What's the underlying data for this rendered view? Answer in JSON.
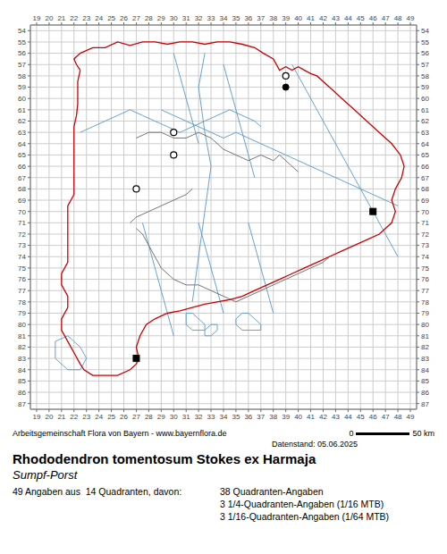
{
  "chart_data": {
    "type": "scatter",
    "title": "Rhododendron tomentosum Stokes ex Harmaja",
    "subtitle": "Sumpf-Porst",
    "annotations": [
      "Arbeitsgemeinschaft Flora von Bayern - www.bayernflora.de",
      "0",
      "50 km",
      "Datenstand: 05.06.2025",
      "49 Angaben aus  14 Quadranten, davon:",
      "38 Quadranten-Angaben",
      "3 1/4-Quadranten-Angaben (1/16 MTB)",
      "3 1/16-Quadranten-Angaben (1/64 MTB)"
    ],
    "xlim": [
      18.5,
      49.5
    ],
    "ylim": [
      87.5,
      53.5
    ],
    "xticks": [
      19,
      20,
      21,
      22,
      23,
      24,
      25,
      26,
      27,
      28,
      29,
      30,
      31,
      32,
      33,
      34,
      35,
      36,
      37,
      38,
      39,
      40,
      41,
      42,
      43,
      44,
      45,
      46,
      47,
      48,
      49
    ],
    "yticks": [
      54,
      55,
      56,
      57,
      58,
      59,
      60,
      61,
      62,
      63,
      64,
      65,
      66,
      67,
      68,
      69,
      70,
      71,
      72,
      73,
      74,
      75,
      76,
      77,
      78,
      79,
      80,
      81,
      82,
      83,
      84,
      85,
      86,
      87
    ],
    "grid": true,
    "series": [
      {
        "type": "line",
        "color": "#5599cc",
        "x": [
          29.0,
          30.0,
          31.0,
          32.0,
          33.0,
          34.0,
          35.0,
          36.0,
          37.0,
          38.0,
          39.0,
          40.0,
          41.0,
          42.0,
          43.0,
          44.0,
          45.0,
          46.0,
          47.0,
          48.0
        ],
        "values": [
          61.0,
          61.5,
          62.0,
          62.5,
          63.0,
          63.5,
          63.0,
          63.5,
          64.0,
          64.5,
          65.0,
          65.5,
          66.0,
          66.5,
          67.0,
          67.5,
          68.0,
          68.5,
          69.0,
          69.5
        ]
      },
      {
        "type": "line",
        "color": "#5599cc",
        "x": [
          32.5,
          32.0,
          32.5,
          33.0,
          32.5,
          32.0,
          31.5
        ],
        "values": [
          56.0,
          59.0,
          63.0,
          66.0,
          70.0,
          74.0,
          78.0
        ]
      },
      {
        "type": "line",
        "color": "#5599cc",
        "x": [
          39.5,
          40.0,
          40.5,
          41.0,
          41.5,
          42.0,
          42.5,
          43.0,
          43.5,
          44.0,
          44.5,
          45.0,
          45.5,
          46.0,
          46.5,
          47.0,
          47.5,
          48.0
        ],
        "values": [
          57.0,
          58.0,
          59.0,
          60.0,
          61.0,
          62.0,
          63.0,
          64.0,
          65.0,
          66.0,
          67.0,
          68.0,
          69.0,
          70.0,
          71.0,
          72.0,
          73.0,
          74.0
        ]
      },
      {
        "type": "line",
        "color": "#5599cc",
        "x": [
          22.5,
          23.5,
          24.5,
          25.5,
          26.5,
          27.5,
          28.5,
          29.5,
          30.5,
          31.5,
          32.5,
          33.5,
          34.5,
          35.5,
          36.5,
          37.0
        ],
        "values": [
          63.0,
          62.5,
          62.0,
          61.5,
          61.0,
          61.5,
          62.0,
          62.5,
          63.0,
          62.5,
          62.0,
          61.5,
          61.0,
          61.5,
          62.0,
          62.5
        ]
      },
      {
        "type": "line",
        "color": "#5599cc",
        "x": [
          30.0,
          30.5,
          31.0,
          31.5,
          32.0
        ],
        "values": [
          56.0,
          58.0,
          60.0,
          62.0,
          64.0
        ]
      },
      {
        "type": "line",
        "color": "#5599cc",
        "x": [
          34.0,
          34.5,
          35.0,
          35.5,
          36.0,
          36.5
        ],
        "values": [
          57.0,
          59.0,
          61.0,
          63.0,
          65.0,
          67.0
        ]
      },
      {
        "type": "line",
        "color": "#5599cc",
        "x": [
          27.5,
          28.0,
          28.5,
          29.0,
          29.5,
          30.0
        ],
        "values": [
          71.0,
          73.0,
          75.0,
          77.0,
          79.0,
          81.0
        ]
      },
      {
        "type": "line",
        "color": "#5599cc",
        "x": [
          32.0,
          32.5,
          33.0,
          33.5,
          34.0
        ],
        "values": [
          71.0,
          73.0,
          75.0,
          77.0,
          79.0
        ]
      },
      {
        "type": "line",
        "color": "#5599cc",
        "x": [
          36.0,
          36.5,
          37.0,
          37.5,
          38.0
        ],
        "values": [
          71.0,
          73.0,
          75.0,
          77.0,
          79.0
        ]
      },
      {
        "type": "line",
        "color": "#5599cc",
        "x": [
          35.0,
          35.5,
          36.0,
          36.5,
          37.0,
          37.0,
          36.5,
          36.0,
          35.5,
          35.0,
          35.0
        ],
        "values": [
          79.5,
          79.0,
          79.0,
          79.5,
          80.0,
          80.5,
          80.5,
          80.5,
          80.5,
          80.0,
          79.5
        ]
      },
      {
        "type": "line",
        "color": "#5599cc",
        "x": [
          31.0,
          31.5,
          32.0,
          32.5,
          32.5,
          32.0,
          31.5,
          31.0,
          31.0
        ],
        "values": [
          79.0,
          79.0,
          79.5,
          80.0,
          80.5,
          80.5,
          80.5,
          80.0,
          79.0
        ]
      },
      {
        "type": "line",
        "color": "#5599cc",
        "x": [
          20.5,
          21.5,
          22.0,
          22.5,
          23.0,
          22.5,
          21.5,
          20.5,
          20.5
        ],
        "values": [
          81.5,
          81.0,
          81.5,
          82.0,
          83.0,
          84.0,
          84.0,
          83.0,
          81.5
        ]
      },
      {
        "type": "line",
        "color": "#5599cc",
        "x": [
          32.5,
          33.0,
          33.5,
          33.5,
          33.0,
          32.5,
          32.5
        ],
        "values": [
          80.5,
          80.0,
          80.0,
          80.5,
          81.0,
          81.0,
          80.5
        ]
      },
      {
        "type": "line",
        "color": "#666666",
        "x": [
          26.5,
          27.0,
          28.0,
          29.0,
          30.0,
          31.0,
          31.5
        ],
        "values": [
          71.0,
          70.5,
          70.0,
          69.5,
          69.0,
          68.5,
          68.0
        ]
      },
      {
        "type": "line",
        "color": "#666666",
        "x": [
          27.0,
          28.0,
          29.0,
          30.0,
          31.0,
          32.0,
          33.0,
          33.5
        ],
        "values": [
          63.5,
          63.0,
          63.0,
          63.5,
          63.5,
          63.0,
          63.5,
          64.0
        ]
      },
      {
        "type": "line",
        "color": "#666666",
        "x": [
          33.5,
          34.0,
          35.0,
          36.0,
          37.0,
          38.0
        ],
        "values": [
          64.0,
          64.5,
          65.0,
          65.5,
          65.0,
          65.5
        ]
      },
      {
        "type": "line",
        "color": "#666666",
        "x": [
          38.0,
          38.5,
          39.0,
          39.5,
          40.0
        ],
        "values": [
          65.5,
          65.0,
          65.5,
          66.0,
          66.5
        ]
      },
      {
        "type": "line",
        "color": "#666666",
        "x": [
          27.0,
          27.5,
          28.0,
          28.5,
          29.0,
          30.0
        ],
        "values": [
          71.5,
          72.0,
          73.0,
          74.0,
          75.0,
          76.0
        ]
      },
      {
        "type": "line",
        "color": "#666666",
        "x": [
          30.0,
          31.0,
          32.0,
          33.0,
          34.0,
          35.0,
          36.0,
          37.0,
          38.0
        ],
        "values": [
          76.0,
          76.5,
          76.5,
          77.0,
          77.5,
          78.0,
          77.5,
          77.0,
          76.5
        ]
      },
      {
        "type": "line",
        "color": "#666666",
        "x": [
          38.0,
          39.0,
          40.0,
          41.0,
          42.0,
          42.5
        ],
        "values": [
          76.5,
          76.0,
          75.5,
          75.0,
          74.5,
          74.0
        ]
      },
      {
        "type": "line",
        "color": "#cc0000",
        "x": [
          22.5,
          22.2,
          22.0,
          22.5,
          23.5,
          24.5,
          25.5,
          26.5,
          27.5,
          28.5,
          29.5,
          30.5,
          31.5,
          32.5,
          33.5,
          34.5,
          35.5,
          36.5,
          37.2,
          38.0,
          38.5,
          39.0,
          39.5,
          40.0,
          40.5,
          41.0,
          41.5,
          42.5,
          43.5,
          44.5,
          45.5,
          46.5,
          47.5,
          48.2,
          48.5,
          48.3,
          47.8,
          47.5,
          47.8,
          47.5,
          46.5,
          45.5,
          44.5,
          43.5,
          42.5,
          41.5,
          40.5,
          39.5,
          38.5,
          37.5,
          36.5,
          35.5,
          34.5,
          33.5,
          32.5,
          31.5,
          30.5,
          29.5,
          28.5,
          27.8,
          27.3,
          27.0,
          27.2,
          27.0,
          26.5,
          25.5,
          24.5,
          23.5,
          22.8,
          22.5,
          22.0,
          21.5,
          21.0,
          21.0,
          21.5,
          21.5,
          21.0,
          21.0,
          21.5,
          21.5,
          21.5,
          21.5,
          21.5,
          21.5,
          22.0,
          22.0,
          22.0,
          22.0,
          22.0,
          22.0,
          22.0,
          22.2,
          22.3,
          22.3,
          22.3,
          22.5
        ],
        "values": [
          57.5,
          57.0,
          56.5,
          56.0,
          55.5,
          55.5,
          55.0,
          55.3,
          55.0,
          55.0,
          55.2,
          55.0,
          55.0,
          55.2,
          55.0,
          55.0,
          55.2,
          55.5,
          56.0,
          56.5,
          57.5,
          57.2,
          57.5,
          57.2,
          57.5,
          57.8,
          58.0,
          59.0,
          60.0,
          61.0,
          62.0,
          63.0,
          64.0,
          65.0,
          66.0,
          67.0,
          68.0,
          69.0,
          70.0,
          71.0,
          72.0,
          72.5,
          73.0,
          73.5,
          74.0,
          74.5,
          75.0,
          75.5,
          76.0,
          76.5,
          77.0,
          77.5,
          77.8,
          78.0,
          78.2,
          78.5,
          78.8,
          79.0,
          79.5,
          80.0,
          81.0,
          82.0,
          83.0,
          83.5,
          84.0,
          84.5,
          84.5,
          84.5,
          84.0,
          83.5,
          82.5,
          81.5,
          80.5,
          79.5,
          78.5,
          77.5,
          76.5,
          75.5,
          74.5,
          73.5,
          72.5,
          71.5,
          70.5,
          69.5,
          68.5,
          67.5,
          66.5,
          65.5,
          64.5,
          63.5,
          62.5,
          61.5,
          60.5,
          59.5,
          58.5,
          57.5
        ]
      },
      {
        "type": "scatter",
        "marker": "open_circle",
        "color": "#000000",
        "x": [
          30,
          30,
          27,
          39
        ],
        "values": [
          63,
          65,
          68,
          58
        ]
      },
      {
        "type": "scatter",
        "marker": "circle",
        "color": "#000000",
        "x": [
          39
        ],
        "values": [
          59
        ]
      },
      {
        "type": "scatter",
        "marker": "square",
        "color": "#000000",
        "x": [
          46,
          27
        ],
        "values": [
          70,
          83
        ]
      }
    ]
  }
}
